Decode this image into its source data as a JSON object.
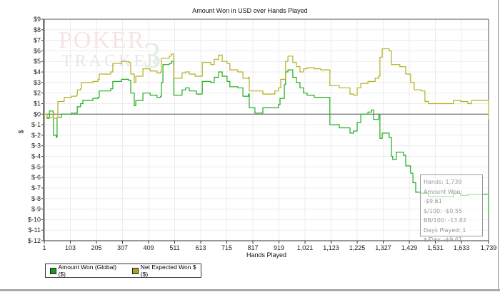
{
  "chart_data": {
    "type": "line",
    "title": "Amount Won in USD over Hands Played",
    "xlabel": "Hands Played",
    "ylabel": "$",
    "xlim": [
      1,
      1739
    ],
    "ylim": [
      -12,
      9
    ],
    "x_ticks": [
      "1",
      "103",
      "205",
      "307",
      "409",
      "511",
      "613",
      "715",
      "817",
      "919",
      "1,021",
      "1,123",
      "1,225",
      "1,327",
      "1,429",
      "1,531",
      "1,633",
      "1,739"
    ],
    "x_tick_values": [
      1,
      103,
      205,
      307,
      409,
      511,
      613,
      715,
      817,
      919,
      1021,
      1123,
      1225,
      1327,
      1429,
      1531,
      1633,
      1739
    ],
    "y_ticks": [
      "$9",
      "$8",
      "$7",
      "$6",
      "$5",
      "$4",
      "$3",
      "$2",
      "$1",
      "$0",
      "$-1",
      "$-2",
      "$-3",
      "$-4",
      "$-5",
      "$-6",
      "$-7",
      "$-8",
      "$-9",
      "$-10",
      "$-11",
      "$-12"
    ],
    "y_tick_values": [
      9,
      8,
      7,
      6,
      5,
      4,
      3,
      2,
      1,
      0,
      -1,
      -2,
      -3,
      -4,
      -5,
      -6,
      -7,
      -8,
      -9,
      -10,
      -11,
      -12
    ],
    "grid": true,
    "legend_position": "bottom-left",
    "series": [
      {
        "name": "Amount Won (Global) ($)",
        "color": "#1fae1f",
        "points": [
          [
            1,
            0
          ],
          [
            12,
            -0.4
          ],
          [
            21,
            0.3
          ],
          [
            35,
            0.2
          ],
          [
            37,
            -2.0
          ],
          [
            48,
            -2.2
          ],
          [
            51,
            -0.3
          ],
          [
            68,
            0
          ],
          [
            107,
            0.1
          ],
          [
            127,
            0.1
          ],
          [
            130,
            0.7
          ],
          [
            143,
            1.0
          ],
          [
            152,
            1.3
          ],
          [
            191,
            1.5
          ],
          [
            211,
            1.6
          ],
          [
            216,
            2.2
          ],
          [
            261,
            2.4
          ],
          [
            269,
            3.1
          ],
          [
            303,
            3.3
          ],
          [
            331,
            3.2
          ],
          [
            339,
            2.0
          ],
          [
            353,
            0.8
          ],
          [
            359,
            1.3
          ],
          [
            387,
            2.0
          ],
          [
            415,
            1.8
          ],
          [
            442,
            1.6
          ],
          [
            456,
            1.7
          ],
          [
            459,
            3.0
          ],
          [
            465,
            4.7
          ],
          [
            490,
            4.8
          ],
          [
            498,
            5.0
          ],
          [
            507,
            4.7
          ],
          [
            508,
            1.8
          ],
          [
            540,
            2.3
          ],
          [
            554,
            2.5
          ],
          [
            568,
            2.2
          ],
          [
            591,
            2.2
          ],
          [
            596,
            1.9
          ],
          [
            618,
            2.0
          ],
          [
            619,
            3.1
          ],
          [
            652,
            3.0
          ],
          [
            666,
            3.5
          ],
          [
            683,
            4.0
          ],
          [
            697,
            3.6
          ],
          [
            716,
            3.1
          ],
          [
            727,
            2.6
          ],
          [
            758,
            2.5
          ],
          [
            778,
            1.7
          ],
          [
            800,
            1.9
          ],
          [
            803,
            0.6
          ],
          [
            825,
            0.1
          ],
          [
            856,
            0.6
          ],
          [
            898,
            0.6
          ],
          [
            917,
            0.9
          ],
          [
            923,
            1.5
          ],
          [
            940,
            2.8
          ],
          [
            945,
            4.0
          ],
          [
            954,
            4.2
          ],
          [
            973,
            3.5
          ],
          [
            987,
            3.0
          ],
          [
            1001,
            2.5
          ],
          [
            1015,
            2.0
          ],
          [
            1029,
            1.8
          ],
          [
            1057,
            1.6
          ],
          [
            1082,
            1.6
          ],
          [
            1118,
            -1.0
          ],
          [
            1155,
            -1.3
          ],
          [
            1197,
            -1.8
          ],
          [
            1211,
            -1.6
          ],
          [
            1225,
            -0.8
          ],
          [
            1239,
            0.0
          ],
          [
            1267,
            0.2
          ],
          [
            1281,
            0.4
          ],
          [
            1289,
            -0.5
          ],
          [
            1309,
            0.0
          ],
          [
            1314,
            -2.3
          ],
          [
            1323,
            -1.8
          ],
          [
            1350,
            -2.2
          ],
          [
            1359,
            -4.0
          ],
          [
            1364,
            -4.3
          ],
          [
            1378,
            -3.6
          ],
          [
            1406,
            -3.9
          ],
          [
            1415,
            -4.9
          ],
          [
            1434,
            -5.6
          ],
          [
            1443,
            -6.5
          ],
          [
            1454,
            -7.4
          ],
          [
            1476,
            -7.5
          ],
          [
            1504,
            -7.8
          ],
          [
            1560,
            -7.8
          ],
          [
            1602,
            -7.5
          ],
          [
            1630,
            -7.7
          ],
          [
            1658,
            -7.6
          ],
          [
            1727,
            -7.6
          ],
          [
            1739,
            -9.61
          ]
        ]
      },
      {
        "name": "Net Expected Won $ ($)",
        "color": "#b5b021",
        "points": [
          [
            1,
            0
          ],
          [
            12,
            -0.3
          ],
          [
            35,
            0
          ],
          [
            37,
            -0.4
          ],
          [
            51,
            -0.3
          ],
          [
            54,
            1.2
          ],
          [
            79,
            1.6
          ],
          [
            107,
            1.7
          ],
          [
            127,
            1.8
          ],
          [
            130,
            2.3
          ],
          [
            143,
            2.4
          ],
          [
            146,
            3.0
          ],
          [
            191,
            3.1
          ],
          [
            211,
            3.3
          ],
          [
            216,
            3.8
          ],
          [
            261,
            4.0
          ],
          [
            269,
            4.8
          ],
          [
            303,
            5.0
          ],
          [
            331,
            4.9
          ],
          [
            339,
            3.8
          ],
          [
            353,
            3.0
          ],
          [
            359,
            3.6
          ],
          [
            387,
            4.3
          ],
          [
            415,
            4.1
          ],
          [
            442,
            3.9
          ],
          [
            456,
            4.0
          ],
          [
            459,
            5.3
          ],
          [
            490,
            5.5
          ],
          [
            498,
            5.7
          ],
          [
            507,
            5.3
          ],
          [
            508,
            3.4
          ],
          [
            540,
            3.9
          ],
          [
            554,
            4.0
          ],
          [
            568,
            3.8
          ],
          [
            591,
            3.6
          ],
          [
            618,
            3.6
          ],
          [
            619,
            4.9
          ],
          [
            652,
            4.7
          ],
          [
            666,
            5.2
          ],
          [
            683,
            5.6
          ],
          [
            697,
            5.0
          ],
          [
            716,
            4.8
          ],
          [
            727,
            4.2
          ],
          [
            758,
            4.0
          ],
          [
            778,
            3.4
          ],
          [
            800,
            3.5
          ],
          [
            803,
            2.2
          ],
          [
            856,
            1.9
          ],
          [
            903,
            2.2
          ],
          [
            917,
            2.5
          ],
          [
            926,
            3.3
          ],
          [
            945,
            5.0
          ],
          [
            954,
            5.5
          ],
          [
            973,
            4.9
          ],
          [
            987,
            4.5
          ],
          [
            1001,
            4.0
          ],
          [
            1015,
            4.3
          ],
          [
            1029,
            4.4
          ],
          [
            1057,
            4.3
          ],
          [
            1082,
            4.2
          ],
          [
            1118,
            2.7
          ],
          [
            1155,
            2.5
          ],
          [
            1197,
            1.9
          ],
          [
            1211,
            1.8
          ],
          [
            1225,
            2.5
          ],
          [
            1239,
            2.9
          ],
          [
            1267,
            3.1
          ],
          [
            1295,
            3.4
          ],
          [
            1309,
            3.6
          ],
          [
            1314,
            5.4
          ],
          [
            1323,
            6.2
          ],
          [
            1350,
            6.0
          ],
          [
            1359,
            4.7
          ],
          [
            1392,
            4.5
          ],
          [
            1415,
            3.8
          ],
          [
            1434,
            3.0
          ],
          [
            1448,
            2.3
          ],
          [
            1476,
            2.2
          ],
          [
            1490,
            1.2
          ],
          [
            1504,
            1.0
          ],
          [
            1560,
            1.0
          ],
          [
            1602,
            1.3
          ],
          [
            1630,
            1.2
          ],
          [
            1658,
            1.0
          ],
          [
            1672,
            1.3
          ],
          [
            1727,
            1.3
          ],
          [
            1739,
            -0.5
          ]
        ]
      }
    ]
  },
  "tooltip": {
    "lines": [
      "Hands: 1,739",
      "Amount Won: -$9.61",
      "$/100: -$0.55",
      "BB/100: -13.82",
      "Days Played: 1",
      "$/Day: -$9.61"
    ]
  },
  "legend": {
    "items": [
      "Amount Won (Global) ($)",
      "Net Expected Won $ ($)"
    ],
    "colors": [
      "#1a9a1a",
      "#a8a41c"
    ]
  },
  "watermark": {
    "text_top": "POKER",
    "text_bottom": "TRACKER",
    "mark": "3"
  }
}
